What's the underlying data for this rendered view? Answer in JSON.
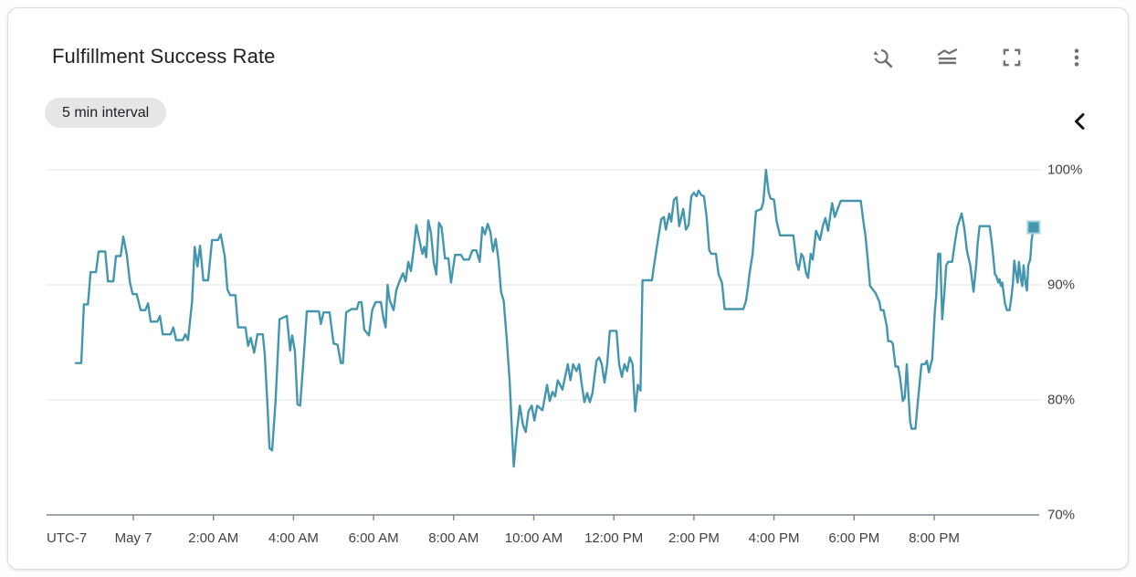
{
  "card": {
    "title": "Fulfillment Success Rate",
    "interval_chip": "5 min interval",
    "toolbar": {
      "buttons": [
        {
          "icon": "zoom-reset-icon"
        },
        {
          "icon": "chart-options-icon"
        },
        {
          "icon": "fullscreen-icon"
        },
        {
          "icon": "more-options-icon"
        }
      ]
    },
    "legend_toggle_icon": "chevron-left-icon"
  },
  "chart_data": {
    "type": "line",
    "title": "Fulfillment Success Rate",
    "series_name": "fulfillment success rate",
    "unit": "%",
    "interval": "5 min",
    "line_color": "#4396ae",
    "marker_color": "#4396ae",
    "grid": true,
    "x_axis": {
      "timezone_label": "UTC-7",
      "ticks": [
        {
          "t": 0,
          "label": "May 7"
        },
        {
          "t": 120,
          "label": "2:00 AM"
        },
        {
          "t": 240,
          "label": "4:00 AM"
        },
        {
          "t": 360,
          "label": "6:00 AM"
        },
        {
          "t": 480,
          "label": "8:00 AM"
        },
        {
          "t": 600,
          "label": "10:00 AM"
        },
        {
          "t": 720,
          "label": "12:00 PM"
        },
        {
          "t": 840,
          "label": "2:00 PM"
        },
        {
          "t": 960,
          "label": "4:00 PM"
        },
        {
          "t": 1080,
          "label": "6:00 PM"
        },
        {
          "t": 1200,
          "label": "8:00 PM"
        }
      ]
    },
    "y_axis": {
      "min": 70,
      "max": 100,
      "ticks": [
        {
          "v": 100,
          "label": "100%"
        },
        {
          "v": 90,
          "label": "90%"
        },
        {
          "v": 80,
          "label": "80%"
        },
        {
          "v": 70,
          "label": "70%"
        }
      ]
    },
    "points": [
      [
        -86,
        83.2
      ],
      [
        -78,
        83.2
      ],
      [
        -74,
        88.3
      ],
      [
        -68,
        88.3
      ],
      [
        -64,
        91.1
      ],
      [
        -56,
        91.1
      ],
      [
        -52,
        92.9
      ],
      [
        -42,
        92.9
      ],
      [
        -38,
        90.3
      ],
      [
        -30,
        90.3
      ],
      [
        -26,
        92.5
      ],
      [
        -19,
        92.5
      ],
      [
        -15,
        94.2
      ],
      [
        -10,
        92.7
      ],
      [
        -5,
        90.2
      ],
      [
        -1,
        89.2
      ],
      [
        5,
        89.2
      ],
      [
        11,
        87.8
      ],
      [
        18,
        87.8
      ],
      [
        22,
        88.4
      ],
      [
        26,
        86.8
      ],
      [
        36,
        86.8
      ],
      [
        40,
        87.3
      ],
      [
        44,
        85.7
      ],
      [
        56,
        85.7
      ],
      [
        60,
        86.3
      ],
      [
        64,
        85.2
      ],
      [
        74,
        85.2
      ],
      [
        78,
        85.7
      ],
      [
        82,
        85.2
      ],
      [
        88,
        88.5
      ],
      [
        92,
        93.3
      ],
      [
        96,
        91.6
      ],
      [
        100,
        93.4
      ],
      [
        105,
        90.4
      ],
      [
        112,
        90.4
      ],
      [
        118,
        93.9
      ],
      [
        127,
        93.9
      ],
      [
        131,
        94.4
      ],
      [
        137,
        92.5
      ],
      [
        141,
        89.6
      ],
      [
        145,
        89.1
      ],
      [
        153,
        89.1
      ],
      [
        157,
        86.3
      ],
      [
        168,
        86.3
      ],
      [
        172,
        84.7
      ],
      [
        176,
        85.4
      ],
      [
        181,
        84.1
      ],
      [
        186,
        85.7
      ],
      [
        194,
        85.7
      ],
      [
        197,
        83.9
      ],
      [
        201,
        79.5
      ],
      [
        204,
        75.8
      ],
      [
        208,
        75.6
      ],
      [
        213,
        79.8
      ],
      [
        219,
        87.0
      ],
      [
        230,
        87.3
      ],
      [
        235,
        84.3
      ],
      [
        238,
        85.6
      ],
      [
        242,
        84.3
      ],
      [
        246,
        79.6
      ],
      [
        250,
        79.5
      ],
      [
        256,
        84.3
      ],
      [
        260,
        87.7
      ],
      [
        278,
        87.7
      ],
      [
        281,
        86.6
      ],
      [
        285,
        87.6
      ],
      [
        294,
        87.6
      ],
      [
        300,
        84.9
      ],
      [
        306,
        84.8
      ],
      [
        311,
        83.2
      ],
      [
        314,
        83.2
      ],
      [
        319,
        87.6
      ],
      [
        327,
        87.9
      ],
      [
        335,
        87.9
      ],
      [
        338,
        88.5
      ],
      [
        342,
        88.5
      ],
      [
        346,
        86.1
      ],
      [
        353,
        85.6
      ],
      [
        358,
        87.8
      ],
      [
        363,
        88.5
      ],
      [
        371,
        88.5
      ],
      [
        375,
        87.0
      ],
      [
        378,
        86.3
      ],
      [
        381,
        90.0
      ],
      [
        384,
        88.7
      ],
      [
        390,
        87.8
      ],
      [
        394,
        89.5
      ],
      [
        398,
        90.2
      ],
      [
        404,
        91.0
      ],
      [
        408,
        90.3
      ],
      [
        412,
        92.0
      ],
      [
        416,
        91.2
      ],
      [
        420,
        93.0
      ],
      [
        424,
        95.2
      ],
      [
        430,
        93.5
      ],
      [
        433,
        92.7
      ],
      [
        436,
        93.3
      ],
      [
        439,
        92.4
      ],
      [
        442,
        95.6
      ],
      [
        446,
        94.5
      ],
      [
        450,
        92.0
      ],
      [
        454,
        90.9
      ],
      [
        458,
        95.4
      ],
      [
        462,
        95.0
      ],
      [
        467,
        92.3
      ],
      [
        472,
        92.3
      ],
      [
        476,
        90.2
      ],
      [
        482,
        92.6
      ],
      [
        491,
        92.6
      ],
      [
        495,
        92.2
      ],
      [
        503,
        92.2
      ],
      [
        508,
        93.0
      ],
      [
        514,
        93.0
      ],
      [
        519,
        92.0
      ],
      [
        523,
        95.0
      ],
      [
        527,
        94.4
      ],
      [
        531,
        95.3
      ],
      [
        535,
        94.6
      ],
      [
        539,
        92.9
      ],
      [
        543,
        94.0
      ],
      [
        547,
        92.2
      ],
      [
        551,
        89.4
      ],
      [
        555,
        88.6
      ],
      [
        560,
        84.9
      ],
      [
        564,
        81.5
      ],
      [
        568,
        76.5
      ],
      [
        570,
        74.2
      ],
      [
        575,
        77.4
      ],
      [
        579,
        79.5
      ],
      [
        584,
        77.8
      ],
      [
        588,
        77.2
      ],
      [
        592,
        79.0
      ],
      [
        597,
        79.5
      ],
      [
        601,
        78.2
      ],
      [
        605,
        79.5
      ],
      [
        613,
        79.1
      ],
      [
        620,
        81.3
      ],
      [
        624,
        79.9
      ],
      [
        628,
        80.7
      ],
      [
        632,
        80.3
      ],
      [
        636,
        81.7
      ],
      [
        643,
        80.9
      ],
      [
        651,
        83.1
      ],
      [
        655,
        81.7
      ],
      [
        659,
        83.1
      ],
      [
        664,
        82.5
      ],
      [
        668,
        83.1
      ],
      [
        672,
        81.3
      ],
      [
        676,
        79.8
      ],
      [
        680,
        80.6
      ],
      [
        684,
        79.8
      ],
      [
        688,
        80.6
      ],
      [
        694,
        83.4
      ],
      [
        698,
        83.7
      ],
      [
        702,
        83.1
      ],
      [
        706,
        81.5
      ],
      [
        710,
        83.1
      ],
      [
        714,
        86.0
      ],
      [
        724,
        86.0
      ],
      [
        728,
        83.1
      ],
      [
        732,
        82.0
      ],
      [
        736,
        83.1
      ],
      [
        740,
        82.5
      ],
      [
        744,
        83.7
      ],
      [
        748,
        83.1
      ],
      [
        752,
        79.0
      ],
      [
        756,
        81.3
      ],
      [
        760,
        80.8
      ],
      [
        763,
        90.4
      ],
      [
        777,
        90.4
      ],
      [
        781,
        92.0
      ],
      [
        785,
        93.5
      ],
      [
        791,
        95.7
      ],
      [
        795,
        95.9
      ],
      [
        798,
        94.8
      ],
      [
        803,
        96.2
      ],
      [
        806,
        95.5
      ],
      [
        810,
        97.4
      ],
      [
        814,
        97.6
      ],
      [
        818,
        95.1
      ],
      [
        824,
        96.6
      ],
      [
        828,
        94.8
      ],
      [
        832,
        95.2
      ],
      [
        836,
        97.7
      ],
      [
        840,
        98.0
      ],
      [
        844,
        97.7
      ],
      [
        847,
        98.2
      ],
      [
        851,
        97.8
      ],
      [
        855,
        97.7
      ],
      [
        859,
        95.9
      ],
      [
        863,
        93.0
      ],
      [
        866,
        92.7
      ],
      [
        873,
        92.7
      ],
      [
        877,
        90.9
      ],
      [
        882,
        90.2
      ],
      [
        886,
        87.9
      ],
      [
        914,
        87.9
      ],
      [
        918,
        88.6
      ],
      [
        921,
        89.8
      ],
      [
        923,
        90.9
      ],
      [
        928,
        92.7
      ],
      [
        930,
        94.3
      ],
      [
        933,
        96.4
      ],
      [
        941,
        96.6
      ],
      [
        944,
        97.2
      ],
      [
        948,
        100.0
      ],
      [
        952,
        98.0
      ],
      [
        955,
        97.5
      ],
      [
        960,
        97.4
      ],
      [
        964,
        95.5
      ],
      [
        969,
        94.3
      ],
      [
        989,
        94.3
      ],
      [
        994,
        91.9
      ],
      [
        997,
        91.3
      ],
      [
        1001,
        92.7
      ],
      [
        1004,
        92.4
      ],
      [
        1008,
        91.0
      ],
      [
        1011,
        90.6
      ],
      [
        1015,
        92.7
      ],
      [
        1018,
        92.2
      ],
      [
        1023,
        94.7
      ],
      [
        1029,
        93.9
      ],
      [
        1033,
        95.1
      ],
      [
        1037,
        95.8
      ],
      [
        1041,
        94.7
      ],
      [
        1047,
        97.1
      ],
      [
        1051,
        95.9
      ],
      [
        1056,
        96.7
      ],
      [
        1060,
        97.3
      ],
      [
        1090,
        97.3
      ],
      [
        1094,
        95.5
      ],
      [
        1097,
        94.3
      ],
      [
        1100,
        92.5
      ],
      [
        1104,
        89.9
      ],
      [
        1112,
        89.3
      ],
      [
        1118,
        88.5
      ],
      [
        1120,
        87.8
      ],
      [
        1124,
        87.8
      ],
      [
        1129,
        86.4
      ],
      [
        1131,
        85.1
      ],
      [
        1135,
        85.1
      ],
      [
        1138,
        84.9
      ],
      [
        1142,
        82.9
      ],
      [
        1146,
        82.9
      ],
      [
        1149,
        81.9
      ],
      [
        1153,
        79.9
      ],
      [
        1156,
        80.2
      ],
      [
        1159,
        83.1
      ],
      [
        1162,
        80.0
      ],
      [
        1164,
        78.1
      ],
      [
        1166,
        77.5
      ],
      [
        1172,
        77.5
      ],
      [
        1175,
        79.5
      ],
      [
        1178,
        81.3
      ],
      [
        1181,
        83.1
      ],
      [
        1186,
        83.1
      ],
      [
        1189,
        83.4
      ],
      [
        1192,
        82.4
      ],
      [
        1195,
        83.1
      ],
      [
        1197,
        83.5
      ],
      [
        1199,
        85.6
      ],
      [
        1201,
        87.7
      ],
      [
        1203,
        89.0
      ],
      [
        1206,
        92.7
      ],
      [
        1209,
        92.7
      ],
      [
        1212,
        87.0
      ],
      [
        1215,
        89.1
      ],
      [
        1218,
        91.7
      ],
      [
        1221,
        92.0
      ],
      [
        1227,
        92.0
      ],
      [
        1231,
        93.7
      ],
      [
        1235,
        95.1
      ],
      [
        1241,
        96.2
      ],
      [
        1245,
        95.0
      ],
      [
        1249,
        93.0
      ],
      [
        1254,
        91.7
      ],
      [
        1259,
        89.4
      ],
      [
        1263,
        91.7
      ],
      [
        1265,
        93.5
      ],
      [
        1268,
        95.1
      ],
      [
        1283,
        95.1
      ],
      [
        1286,
        93.8
      ],
      [
        1289,
        92.2
      ],
      [
        1291,
        90.9
      ],
      [
        1293,
        90.8
      ],
      [
        1296,
        90.2
      ],
      [
        1298,
        90.5
      ],
      [
        1300,
        89.9
      ],
      [
        1302,
        90.2
      ],
      [
        1304,
        89.3
      ],
      [
        1306,
        88.4
      ],
      [
        1309,
        87.8
      ],
      [
        1313,
        87.8
      ],
      [
        1316,
        89.1
      ],
      [
        1318,
        90.1
      ],
      [
        1320,
        92.1
      ],
      [
        1323,
        90.9
      ],
      [
        1325,
        90.2
      ],
      [
        1327,
        92.0
      ],
      [
        1330,
        90.5
      ],
      [
        1332,
        89.9
      ],
      [
        1334,
        91.7
      ],
      [
        1337,
        90.1
      ],
      [
        1339,
        89.5
      ],
      [
        1341,
        91.7
      ],
      [
        1344,
        92.2
      ],
      [
        1346,
        93.9
      ],
      [
        1349,
        95.0
      ]
    ],
    "end_marker": {
      "t": 1349,
      "value": 95.0
    }
  }
}
